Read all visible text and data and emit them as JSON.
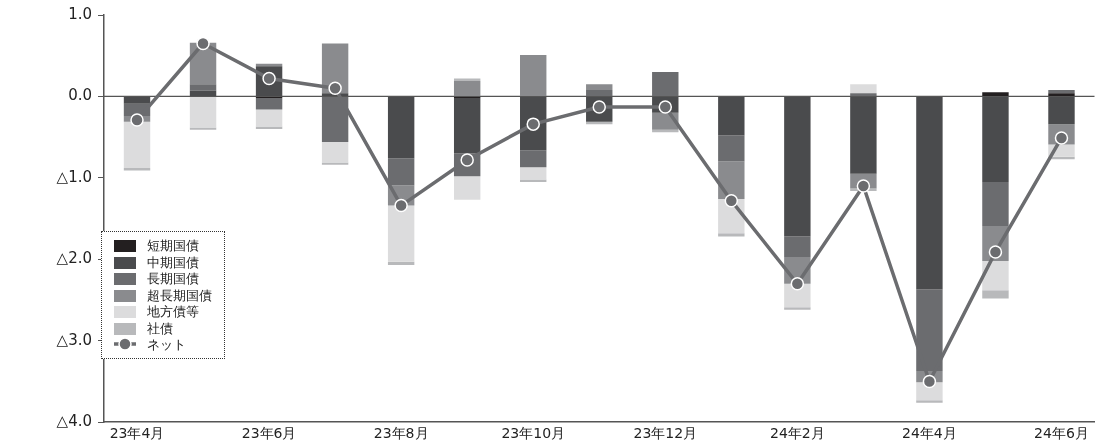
{
  "chart_data": {
    "type": "bar",
    "stacked": true,
    "categories": [
      "23年4月",
      null,
      "23年6月",
      null,
      "23年8月",
      null,
      "23年10月",
      null,
      "23年12月",
      null,
      "24年2月",
      null,
      "24年4月",
      null,
      "24年6月"
    ],
    "series": [
      {
        "name": "短期国債",
        "color": "#231f20",
        "values": [
          null,
          null,
          -0.02,
          null,
          null,
          -0.02,
          null,
          null,
          null,
          null,
          null,
          null,
          null,
          0.05,
          0.04
        ]
      },
      {
        "name": "中期国債",
        "color": "#4a4b4d",
        "values": [
          -0.09,
          0.07,
          0.37,
          0.04,
          -0.76,
          -0.68,
          -0.66,
          -0.31,
          -0.2,
          -0.48,
          -1.72,
          -0.95,
          -2.37,
          -1.05,
          -0.34
        ]
      },
      {
        "name": "長期国債",
        "color": "#6b6c6f",
        "values": [
          -0.15,
          0.08,
          -0.14,
          -0.56,
          -0.33,
          -0.28,
          -0.21,
          0.08,
          0.3,
          -0.32,
          -0.25,
          0.04,
          -1.0,
          -0.54,
          0.04
        ]
      },
      {
        "name": "超長期国債",
        "color": "#8a8b8e",
        "values": [
          -0.07,
          0.51,
          0.03,
          0.61,
          -0.25,
          0.19,
          0.51,
          0.07,
          -0.21,
          -0.46,
          -0.33,
          -0.18,
          -0.14,
          -0.43,
          -0.25
        ]
      },
      {
        "name": "地方債等",
        "color": "#dcdcdd",
        "values": [
          -0.57,
          -0.38,
          -0.21,
          -0.25,
          -0.69,
          -0.29,
          -0.15,
          null,
          null,
          -0.42,
          -0.29,
          0.11,
          -0.22,
          -0.36,
          -0.15
        ]
      },
      {
        "name": "社債",
        "color": "#b8b9bb",
        "values": [
          -0.03,
          -0.03,
          -0.03,
          -0.03,
          -0.04,
          0.03,
          -0.03,
          -0.03,
          -0.03,
          -0.04,
          -0.03,
          -0.03,
          -0.03,
          -0.1,
          -0.03
        ]
      },
      {
        "name": "ネット",
        "type": "line",
        "color": "#6b6c6f",
        "values": [
          -0.29,
          0.65,
          0.22,
          0.1,
          -1.34,
          -0.78,
          -0.34,
          -0.13,
          -0.13,
          -1.28,
          -2.3,
          -1.1,
          -3.5,
          -1.91,
          -0.51
        ]
      }
    ],
    "ylim": [
      -4,
      1
    ],
    "yticks": [
      {
        "value": -4,
        "label": "△4.0"
      },
      {
        "value": -3,
        "label": "△3.0"
      },
      {
        "value": -2,
        "label": "△2.0"
      },
      {
        "value": -1,
        "label": "△1.0"
      },
      {
        "value": 0,
        "label": "0.0"
      },
      {
        "value": 1,
        "label": "1.0"
      }
    ],
    "ref_lines": [
      {
        "axis": "y",
        "value": 0,
        "color": "#555555"
      }
    ],
    "grid": false,
    "legend": "bottom left",
    "marker": "circle"
  }
}
